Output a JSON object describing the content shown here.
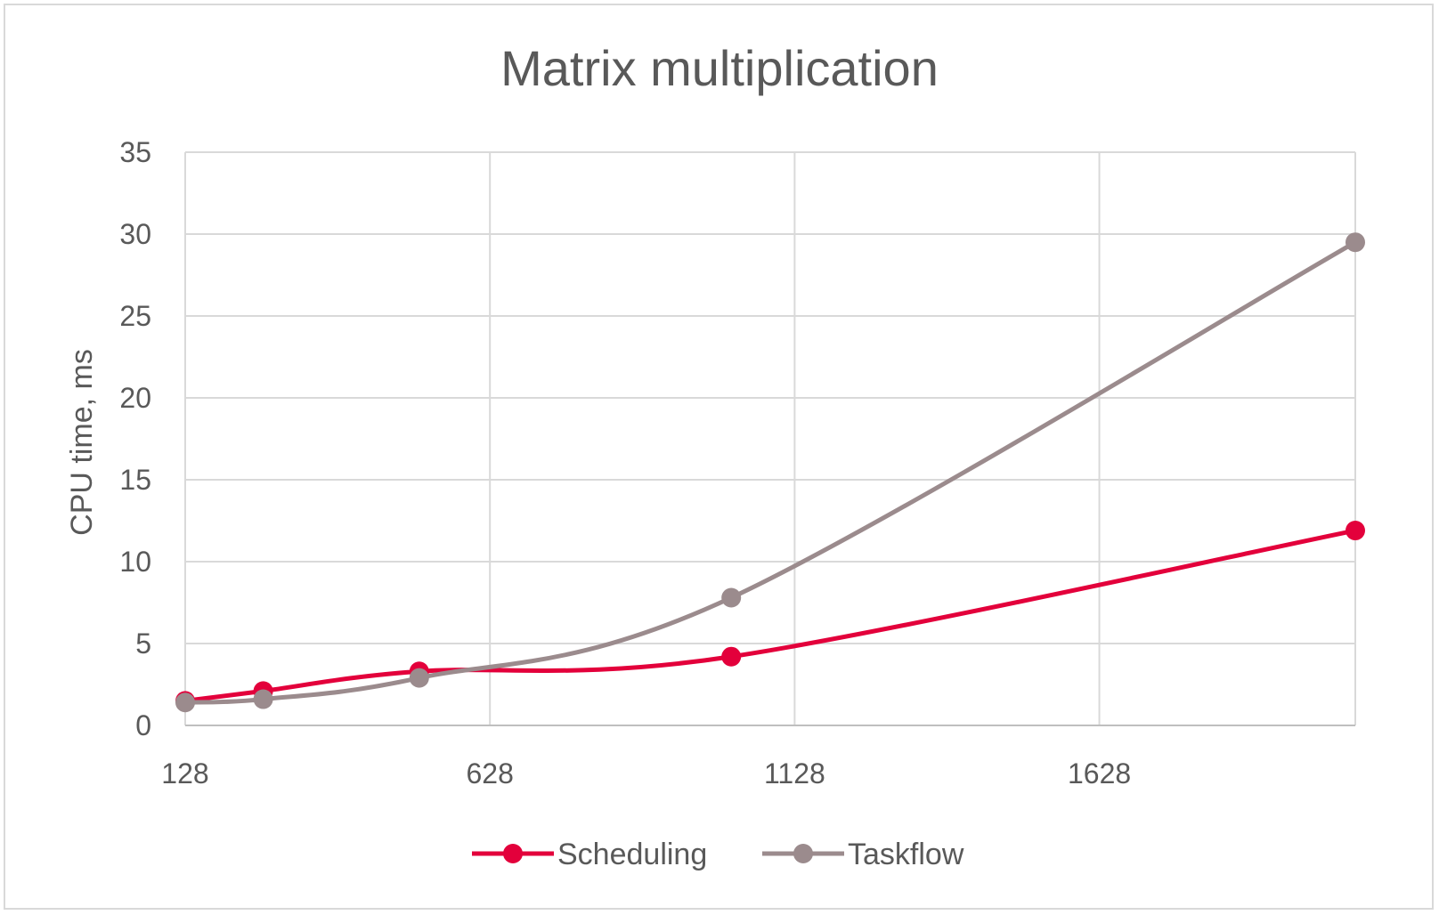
{
  "chart_data": {
    "type": "line",
    "title": "Matrix multiplication",
    "xlabel": "",
    "ylabel": "CPU time, ms",
    "x_ticks": [
      "128",
      "628",
      "1128",
      "1628"
    ],
    "y_ticks": [
      "0",
      "5",
      "10",
      "15",
      "20",
      "25",
      "30",
      "35"
    ],
    "xlim": [
      128,
      2048
    ],
    "ylim": [
      0,
      35
    ],
    "grid": true,
    "legend_position": "bottom",
    "series": [
      {
        "name": "Scheduling",
        "color": "#e3003b",
        "x": [
          128,
          256,
          512,
          1024,
          2048
        ],
        "y": [
          1.5,
          2.1,
          3.3,
          4.2,
          11.9
        ]
      },
      {
        "name": "Taskflow",
        "color": "#9b8b8d",
        "x": [
          128,
          256,
          512,
          1024,
          2048
        ],
        "y": [
          1.4,
          1.6,
          2.9,
          7.8,
          29.5
        ]
      }
    ]
  }
}
